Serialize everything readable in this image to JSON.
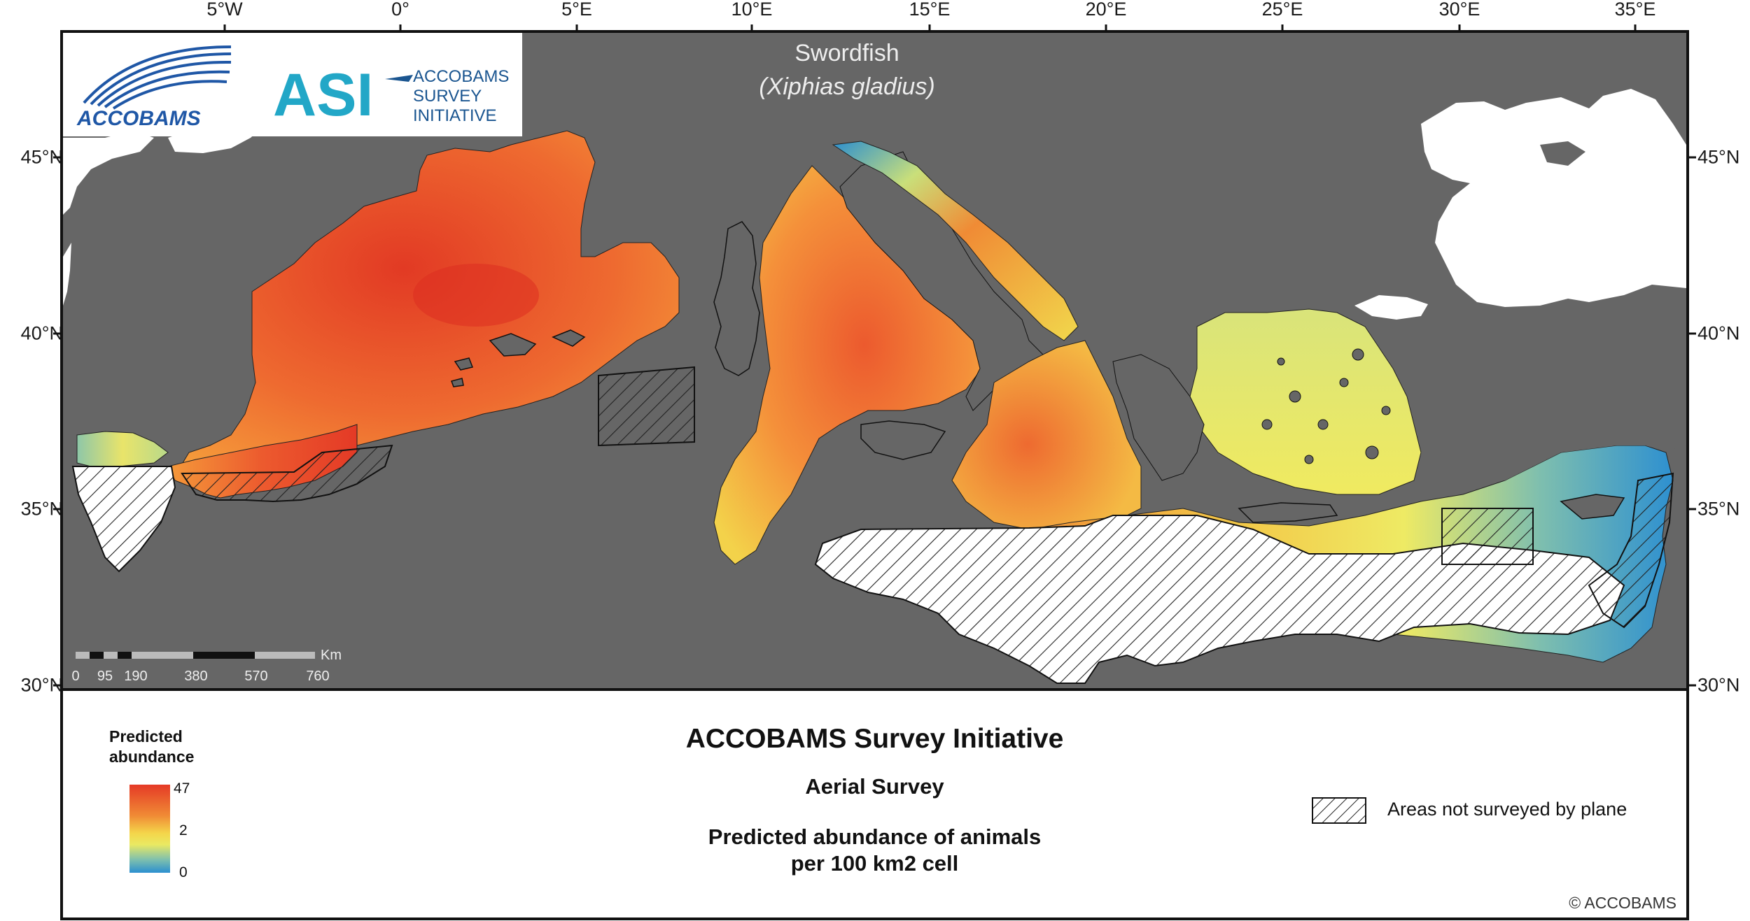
{
  "axes": {
    "longitude_ticks": [
      "5°W",
      "0°",
      "5°E",
      "10°E",
      "15°E",
      "20°E",
      "25°E",
      "30°E",
      "35°E"
    ],
    "latitude_ticks": [
      "45°N",
      "40°N",
      "35°N",
      "30°N"
    ]
  },
  "map": {
    "species_name": "Swordfish",
    "species_latin": "(Xiphias gladius)",
    "logos": {
      "accobams": "ACCOBAMS",
      "asi_mark": "ASI",
      "asi_line1": "ACCOBAMS",
      "asi_line2": "SURVEY",
      "asi_line3": "INITIATIVE"
    },
    "scale_bar": {
      "unit": "Km",
      "labels": [
        "0",
        "95",
        "190",
        "380",
        "570",
        "760"
      ]
    },
    "colors": {
      "sea": "#666666",
      "land": "#ffffff",
      "high": "#e8392a",
      "mid": "#f3e85a",
      "low": "#2b8fd0"
    }
  },
  "legend": {
    "title_line1": "Predicted",
    "title_line2": "abundance",
    "max_label": "47",
    "mid_label": "2",
    "min_label": "0",
    "hatch_label": "Areas not surveyed by plane"
  },
  "panel": {
    "title": "ACCOBAMS Survey Initiative",
    "subtitle": "Aerial Survey",
    "description_line1": "Predicted abundance of animals",
    "description_line2": "per 100 km2 cell",
    "copyright": "© ACCOBAMS"
  }
}
